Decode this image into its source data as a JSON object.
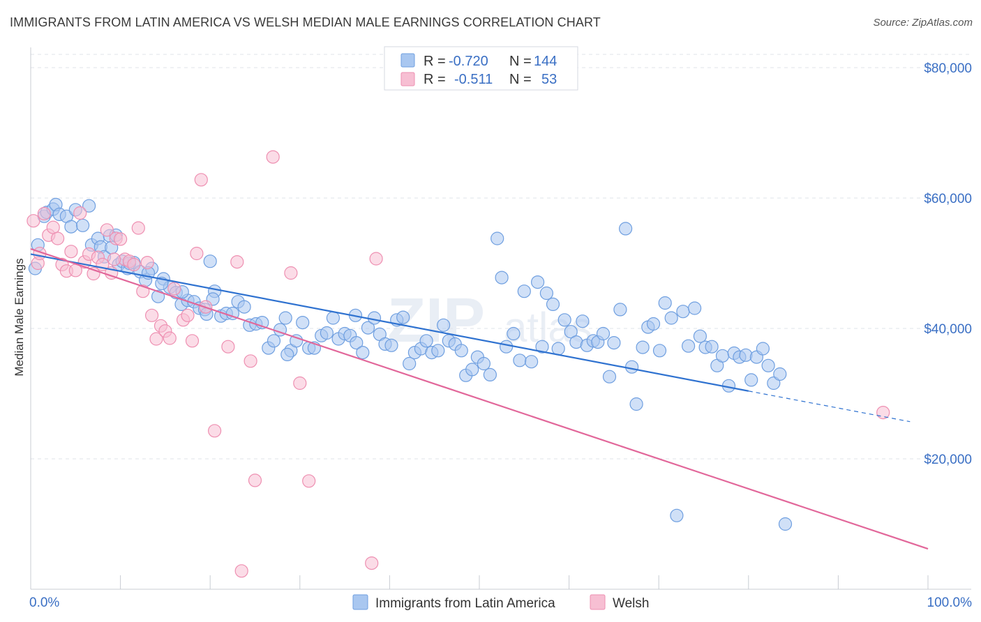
{
  "header": {
    "title": "IMMIGRANTS FROM LATIN AMERICA VS WELSH MEDIAN MALE EARNINGS CORRELATION CHART",
    "source": "Source: ZipAtlas.com"
  },
  "watermark": {
    "part1": "ZIP",
    "part2": "atlas"
  },
  "legend": {
    "rows": [
      {
        "r_label": "R =",
        "r_value": "-0.720",
        "n_label": "N =",
        "n_value": "144"
      },
      {
        "r_label": "R =",
        "r_value": "-0.511",
        "n_label": "N =",
        "n_value": "53"
      }
    ]
  },
  "bottom_legend": [
    "Immigrants from Latin America",
    "Welsh"
  ],
  "colors": {
    "blue_fill": "#a9c7f0",
    "blue_stroke": "#6f9fe0",
    "blue_line": "#2f72d0",
    "pink_fill": "#f7bfd3",
    "pink_stroke": "#ee8fb1",
    "pink_line": "#e2679a",
    "grid": "#dfe3ea",
    "accent_text": "#3a6fc4"
  },
  "chart_data": {
    "type": "scatter",
    "title": "IMMIGRANTS FROM LATIN AMERICA VS WELSH MEDIAN MALE EARNINGS CORRELATION CHART",
    "xlabel": "",
    "ylabel": "Median Male Earnings",
    "xlim": [
      0,
      100
    ],
    "ylim": [
      0,
      82000
    ],
    "x_tick_labels": [
      "0.0%",
      "100.0%"
    ],
    "y_ticks": [
      20000,
      40000,
      60000,
      80000
    ],
    "y_tick_labels": [
      "$20,000",
      "$40,000",
      "$60,000",
      "$80,000"
    ],
    "grid": true,
    "legend_position": "top-center",
    "series": [
      {
        "name": "Immigrants from Latin America",
        "r": -0.72,
        "n": 144,
        "trend": {
          "x0": 0,
          "y0": 51400,
          "x1": 80,
          "y1": 30400,
          "dash_to_x": 98,
          "dash_to_y": 25700
        },
        "points": [
          [
            0.5,
            49200
          ],
          [
            0.8,
            52800
          ],
          [
            1.5,
            57200
          ],
          [
            1.8,
            57800
          ],
          [
            2.5,
            58300
          ],
          [
            2.8,
            59000
          ],
          [
            3.2,
            57500
          ],
          [
            4.0,
            57200
          ],
          [
            4.5,
            55600
          ],
          [
            5.0,
            58200
          ],
          [
            5.8,
            55800
          ],
          [
            6.5,
            58800
          ],
          [
            6.8,
            52800
          ],
          [
            7.5,
            53800
          ],
          [
            7.8,
            52500
          ],
          [
            8.2,
            51000
          ],
          [
            8.8,
            54200
          ],
          [
            9.5,
            54300
          ],
          [
            9.8,
            49800
          ],
          [
            10.2,
            50300
          ],
          [
            10.8,
            49200
          ],
          [
            11.5,
            50100
          ],
          [
            12.2,
            48700
          ],
          [
            12.8,
            47400
          ],
          [
            13.5,
            49200
          ],
          [
            14.2,
            44900
          ],
          [
            14.8,
            47600
          ],
          [
            15.5,
            46300
          ],
          [
            16.2,
            45500
          ],
          [
            16.8,
            43700
          ],
          [
            17.5,
            44300
          ],
          [
            18.2,
            44100
          ],
          [
            18.8,
            43100
          ],
          [
            19.4,
            42900
          ],
          [
            20.0,
            50300
          ],
          [
            20.5,
            45700
          ],
          [
            21.2,
            41900
          ],
          [
            21.8,
            42300
          ],
          [
            22.5,
            42300
          ],
          [
            23.1,
            44100
          ],
          [
            23.8,
            43300
          ],
          [
            24.4,
            40500
          ],
          [
            25.1,
            40700
          ],
          [
            25.8,
            40900
          ],
          [
            26.5,
            37000
          ],
          [
            27.1,
            38100
          ],
          [
            27.8,
            39800
          ],
          [
            28.4,
            41600
          ],
          [
            29.0,
            36600
          ],
          [
            29.6,
            38100
          ],
          [
            30.3,
            40900
          ],
          [
            31.0,
            37000
          ],
          [
            31.6,
            37000
          ],
          [
            32.4,
            38900
          ],
          [
            33.0,
            39300
          ],
          [
            33.7,
            41600
          ],
          [
            34.3,
            38400
          ],
          [
            35.0,
            39200
          ],
          [
            35.6,
            38900
          ],
          [
            36.3,
            37800
          ],
          [
            37.0,
            36300
          ],
          [
            37.6,
            40100
          ],
          [
            38.3,
            41600
          ],
          [
            38.9,
            39100
          ],
          [
            39.5,
            37600
          ],
          [
            40.2,
            37400
          ],
          [
            40.8,
            41300
          ],
          [
            41.5,
            41700
          ],
          [
            42.2,
            34600
          ],
          [
            42.8,
            36300
          ],
          [
            43.5,
            36900
          ],
          [
            44.1,
            38100
          ],
          [
            44.7,
            36300
          ],
          [
            45.4,
            36600
          ],
          [
            46.0,
            40500
          ],
          [
            46.6,
            38100
          ],
          [
            47.3,
            37600
          ],
          [
            48.0,
            36600
          ],
          [
            48.5,
            32800
          ],
          [
            49.2,
            33700
          ],
          [
            49.8,
            35600
          ],
          [
            50.5,
            34600
          ],
          [
            51.2,
            32900
          ],
          [
            52.0,
            53800
          ],
          [
            52.5,
            47800
          ],
          [
            53.0,
            37200
          ],
          [
            53.8,
            39200
          ],
          [
            54.5,
            35100
          ],
          [
            55.0,
            45700
          ],
          [
            55.8,
            34900
          ],
          [
            56.5,
            47100
          ],
          [
            57.0,
            37200
          ],
          [
            57.5,
            45400
          ],
          [
            58.2,
            43700
          ],
          [
            58.8,
            36900
          ],
          [
            59.5,
            41300
          ],
          [
            60.2,
            39500
          ],
          [
            60.8,
            37900
          ],
          [
            61.5,
            41100
          ],
          [
            62.0,
            37400
          ],
          [
            62.7,
            38100
          ],
          [
            63.2,
            37900
          ],
          [
            63.8,
            39200
          ],
          [
            64.5,
            32600
          ],
          [
            65.0,
            37800
          ],
          [
            65.7,
            42900
          ],
          [
            66.3,
            55300
          ],
          [
            67.0,
            34100
          ],
          [
            67.5,
            28400
          ],
          [
            68.2,
            37100
          ],
          [
            68.8,
            40200
          ],
          [
            69.4,
            40700
          ],
          [
            70.1,
            36600
          ],
          [
            70.7,
            43900
          ],
          [
            71.4,
            41600
          ],
          [
            72.0,
            11300
          ],
          [
            72.7,
            42600
          ],
          [
            73.3,
            37300
          ],
          [
            74.0,
            43100
          ],
          [
            74.6,
            38800
          ],
          [
            75.2,
            37100
          ],
          [
            75.9,
            37200
          ],
          [
            76.5,
            34300
          ],
          [
            77.1,
            35800
          ],
          [
            77.8,
            31200
          ],
          [
            78.4,
            36200
          ],
          [
            79.0,
            35600
          ],
          [
            79.7,
            35900
          ],
          [
            80.3,
            32100
          ],
          [
            80.9,
            35600
          ],
          [
            81.6,
            36900
          ],
          [
            82.2,
            34300
          ],
          [
            82.8,
            31600
          ],
          [
            83.5,
            33000
          ],
          [
            84.1,
            10000
          ],
          [
            36.2,
            42000
          ],
          [
            28.6,
            36000
          ],
          [
            20.3,
            44500
          ],
          [
            19.6,
            42200
          ],
          [
            14.6,
            46900
          ],
          [
            11.0,
            50000
          ],
          [
            9.0,
            52400
          ],
          [
            13.1,
            48500
          ],
          [
            16.9,
            45600
          ]
        ]
      },
      {
        "name": "Welsh",
        "r": -0.511,
        "n": 53,
        "trend": {
          "x0": 0,
          "y0": 52200,
          "x1": 100,
          "y1": 6200
        },
        "points": [
          [
            0.3,
            56500
          ],
          [
            0.8,
            50000
          ],
          [
            1.0,
            51500
          ],
          [
            1.5,
            57600
          ],
          [
            2.0,
            54300
          ],
          [
            2.5,
            55500
          ],
          [
            3.0,
            53800
          ],
          [
            3.5,
            49800
          ],
          [
            4.0,
            48800
          ],
          [
            4.5,
            51800
          ],
          [
            5.0,
            48900
          ],
          [
            5.5,
            57700
          ],
          [
            6.0,
            50200
          ],
          [
            6.5,
            51400
          ],
          [
            7.0,
            48400
          ],
          [
            7.5,
            50900
          ],
          [
            8.0,
            49800
          ],
          [
            8.5,
            55100
          ],
          [
            9.0,
            48500
          ],
          [
            9.5,
            53800
          ],
          [
            10.0,
            53700
          ],
          [
            10.5,
            50600
          ],
          [
            11.0,
            50300
          ],
          [
            11.5,
            49800
          ],
          [
            12.0,
            55400
          ],
          [
            12.5,
            45700
          ],
          [
            13.0,
            50100
          ],
          [
            13.5,
            42000
          ],
          [
            14.0,
            38400
          ],
          [
            14.5,
            40400
          ],
          [
            15.0,
            39600
          ],
          [
            15.5,
            38500
          ],
          [
            16.0,
            46100
          ],
          [
            17.0,
            41300
          ],
          [
            17.5,
            42000
          ],
          [
            18.0,
            38100
          ],
          [
            18.5,
            51500
          ],
          [
            19.0,
            62800
          ],
          [
            19.5,
            43300
          ],
          [
            20.5,
            24300
          ],
          [
            22.0,
            37200
          ],
          [
            23.0,
            50200
          ],
          [
            23.5,
            2800
          ],
          [
            24.5,
            35000
          ],
          [
            25.0,
            16700
          ],
          [
            27.0,
            66300
          ],
          [
            29.0,
            48500
          ],
          [
            30.0,
            31600
          ],
          [
            31.0,
            16600
          ],
          [
            38.5,
            50700
          ],
          [
            38.0,
            4000
          ],
          [
            95.0,
            27100
          ],
          [
            9.3,
            50600
          ]
        ]
      }
    ]
  }
}
